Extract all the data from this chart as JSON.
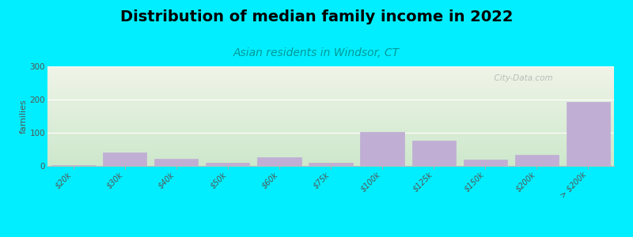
{
  "title": "Distribution of median family income in 2022",
  "subtitle": "Asian residents in Windsor, CT",
  "ylabel": "families",
  "categories": [
    "$20k",
    "$30k",
    "$40k",
    "$50k",
    "$60k",
    "$75k",
    "$100k",
    "$125k",
    "$150k",
    "$200k",
    "> $200k"
  ],
  "values": [
    2,
    40,
    22,
    10,
    27,
    10,
    103,
    77,
    18,
    33,
    193
  ],
  "bar_color": "#c0aed4",
  "bar_edgecolor": "#c0aed4",
  "background_outer": "#00eeff",
  "background_plot_top": "#f0f4e8",
  "background_plot_bottom": "#cde8cc",
  "ylim": [
    0,
    300
  ],
  "yticks": [
    0,
    100,
    200,
    300
  ],
  "title_fontsize": 14,
  "subtitle_fontsize": 10,
  "ylabel_fontsize": 8,
  "watermark": "  City-Data.com"
}
